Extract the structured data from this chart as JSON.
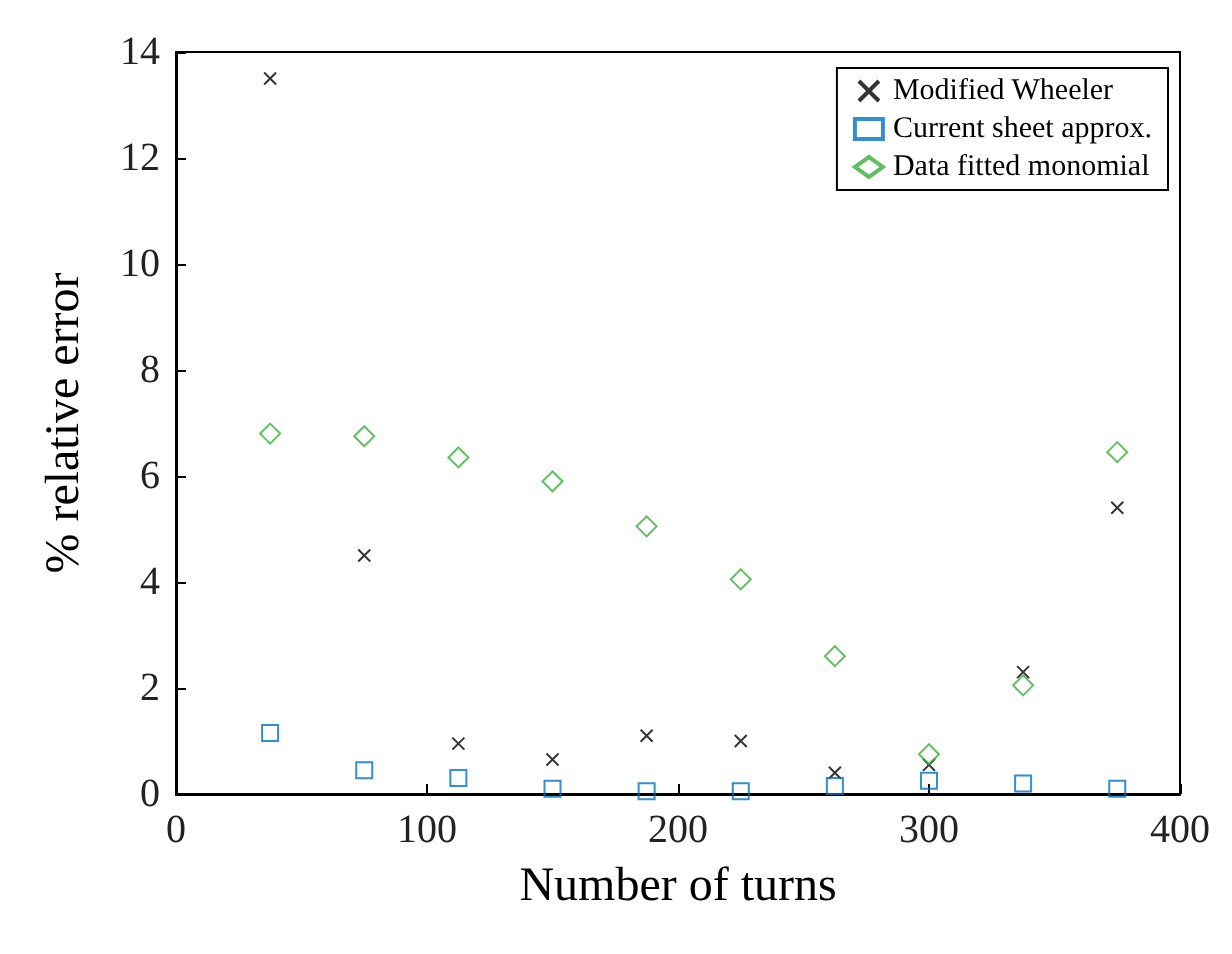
{
  "chart_data": {
    "type": "scatter",
    "xlabel": "Number of turns",
    "ylabel": "% relative error",
    "x": [
      37.5,
      75,
      112.5,
      150,
      187.5,
      225,
      262.5,
      300,
      337.5,
      375
    ],
    "series": [
      {
        "name": "Modified Wheeler",
        "color": "#000000",
        "marker": "cross",
        "values": [
          13.5,
          4.5,
          0.95,
          0.65,
          1.1,
          1.0,
          0.4,
          0.55,
          2.3,
          5.4
        ]
      },
      {
        "name": "Current sheet approx.",
        "color": "#0072bd",
        "marker": "square",
        "values": [
          1.15,
          0.45,
          0.3,
          0.1,
          0.05,
          0.05,
          0.15,
          0.25,
          0.2,
          0.1
        ]
      },
      {
        "name": "Data fitted monomial",
        "color": "#3cae3c",
        "marker": "diamond",
        "values": [
          6.8,
          6.75,
          6.35,
          5.9,
          5.05,
          4.05,
          2.6,
          0.75,
          2.05,
          6.45
        ]
      }
    ],
    "xlim": [
      0,
      400
    ],
    "xticks": [
      0,
      100,
      200,
      300,
      400
    ],
    "ylim": [
      0,
      14
    ],
    "yticks": [
      0,
      2,
      4,
      6,
      8,
      10,
      12,
      14
    ],
    "grid": false,
    "legend": "top right"
  }
}
